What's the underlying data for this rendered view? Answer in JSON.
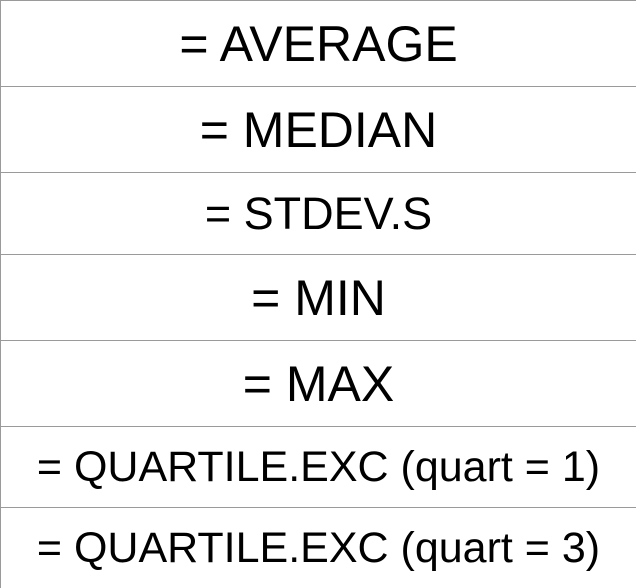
{
  "rows": [
    {
      "text": "= AVERAGE"
    },
    {
      "text": "= MEDIAN"
    },
    {
      "text": "= STDEV.S"
    },
    {
      "text": "= MIN"
    },
    {
      "text": "= MAX"
    },
    {
      "text": "= QUARTILE.EXC (quart = 1)"
    },
    {
      "text": "= QUARTILE.EXC (quart = 3)"
    }
  ]
}
